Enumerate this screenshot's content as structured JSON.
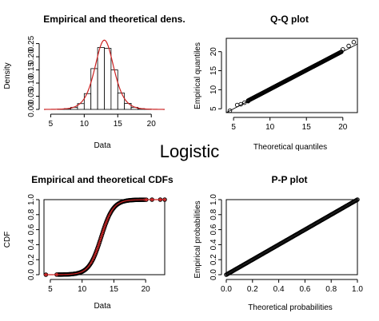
{
  "figure": {
    "overlay_label": "Logistic",
    "colors": {
      "curve": "#cc2222",
      "ink": "#000000",
      "point_red": "#cc3333"
    }
  },
  "chart_data": [
    {
      "type": "bar",
      "title": "Empirical and theoretical dens.",
      "xlabel": "Data",
      "ylabel": "Density",
      "xlim": [
        4,
        22
      ],
      "ylim": [
        0,
        0.27
      ],
      "xticks": [
        5,
        10,
        15,
        20
      ],
      "yticks": [
        0.0,
        0.05,
        0.1,
        0.15,
        0.2,
        0.25
      ],
      "bins": [
        {
          "x0": 6,
          "x1": 7,
          "density": 0.001
        },
        {
          "x0": 7,
          "x1": 8,
          "density": 0.003
        },
        {
          "x0": 8,
          "x1": 9,
          "density": 0.008
        },
        {
          "x0": 9,
          "x1": 10,
          "density": 0.022
        },
        {
          "x0": 10,
          "x1": 11,
          "density": 0.06
        },
        {
          "x0": 11,
          "x1": 12,
          "density": 0.155
        },
        {
          "x0": 12,
          "x1": 13,
          "density": 0.235
        },
        {
          "x0": 13,
          "x1": 14,
          "density": 0.232
        },
        {
          "x0": 14,
          "x1": 15,
          "density": 0.15
        },
        {
          "x0": 15,
          "x1": 16,
          "density": 0.062
        },
        {
          "x0": 16,
          "x1": 17,
          "density": 0.023
        },
        {
          "x0": 17,
          "x1": 18,
          "density": 0.008
        },
        {
          "x0": 18,
          "x1": 19,
          "density": 0.003
        },
        {
          "x0": 19,
          "x1": 20,
          "density": 0.001
        }
      ],
      "density_curve": {
        "location": 13,
        "scale": 0.95
      }
    },
    {
      "type": "scatter",
      "title": "Q-Q plot",
      "xlabel": "Theoretical quantiles",
      "ylabel": "Empirical quantiles",
      "xlim": [
        4,
        22
      ],
      "ylim": [
        4,
        23.5
      ],
      "xticks": [
        5,
        10,
        15,
        20
      ],
      "yticks": [
        5,
        10,
        15,
        20
      ],
      "points": [
        [
          4.5,
          4.5
        ],
        [
          5.5,
          6.0
        ],
        [
          6.0,
          6.2
        ],
        [
          6.5,
          6.6
        ],
        [
          7.0,
          7.0
        ],
        [
          20.0,
          20.6
        ],
        [
          20.8,
          21.5
        ],
        [
          21.5,
          22.5
        ]
      ],
      "dense_segment": {
        "from": 7.0,
        "to": 19.8
      },
      "reference_line": [
        [
          4,
          4
        ],
        [
          22,
          22
        ]
      ]
    },
    {
      "type": "line",
      "title": "Empirical and theoretical CDFs",
      "xlabel": "Data",
      "ylabel": "CDF",
      "xlim": [
        4,
        23
      ],
      "ylim": [
        0,
        1
      ],
      "xticks": [
        5,
        10,
        15,
        20
      ],
      "yticks": [
        0.0,
        0.2,
        0.4,
        0.6,
        0.8,
        1.0
      ],
      "cdf": {
        "location": 13,
        "scale": 0.95
      },
      "points": [
        [
          4.3,
          0.0
        ],
        [
          6.0,
          0.001
        ],
        [
          20.1,
          0.999
        ],
        [
          21.0,
          1.0
        ],
        [
          22.3,
          1.0
        ],
        [
          23.0,
          1.0
        ]
      ],
      "dense_segment": {
        "from": 6.2,
        "to": 19.9
      }
    },
    {
      "type": "scatter",
      "title": "P-P plot",
      "xlabel": "Theoretical probabilities",
      "ylabel": "Empirical probabilities",
      "xlim": [
        0,
        1
      ],
      "ylim": [
        0,
        1
      ],
      "xticks": [
        0.0,
        0.2,
        0.4,
        0.6,
        0.8,
        1.0
      ],
      "yticks": [
        0.0,
        0.2,
        0.4,
        0.6,
        0.8,
        1.0
      ],
      "dense_segment": {
        "from": 0.0,
        "to": 1.0
      }
    }
  ]
}
